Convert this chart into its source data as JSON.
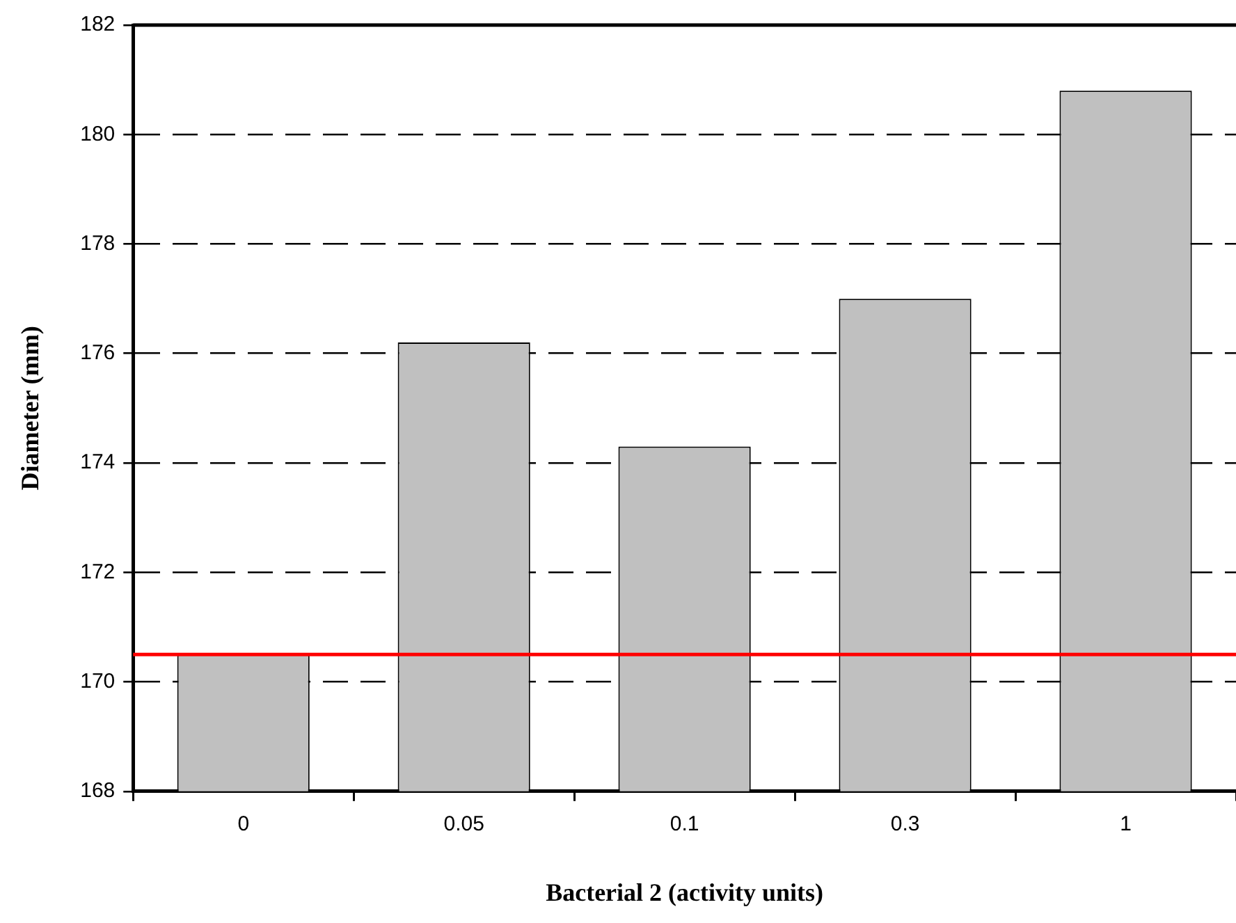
{
  "chart_data": {
    "type": "bar",
    "xlabel": "Bacterial 2 (activity units)",
    "ylabel": "Diameter (mm)",
    "categories": [
      "0",
      "0.05",
      "0.1",
      "0.3",
      "1"
    ],
    "values": [
      170.5,
      176.2,
      174.3,
      177.0,
      180.8
    ],
    "color": "#c0c0c0",
    "ylim": [
      168,
      182
    ],
    "yticks": [
      168,
      170,
      172,
      174,
      176,
      178,
      180,
      182
    ],
    "grid": "y",
    "ref_lines": [
      {
        "axis": "y",
        "value": 170.5,
        "color": "#ff0000"
      }
    ]
  }
}
